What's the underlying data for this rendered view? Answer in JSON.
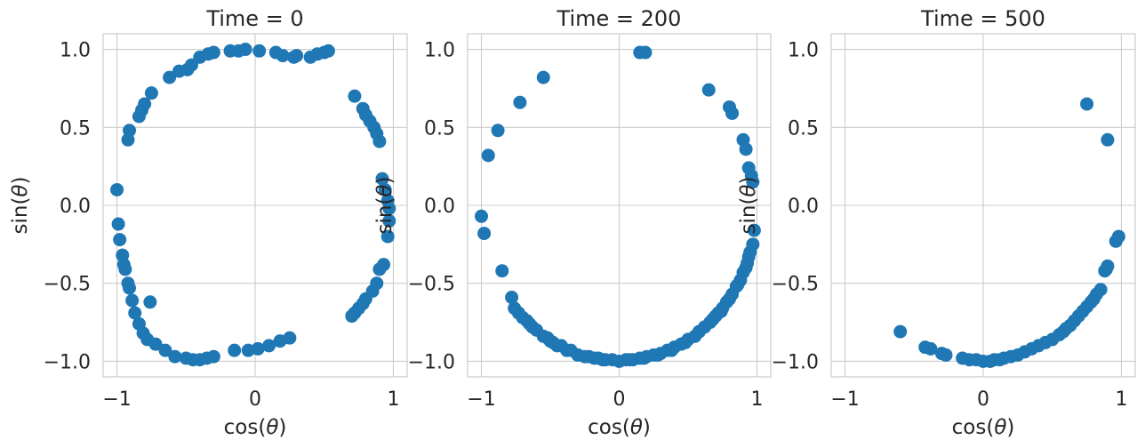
{
  "chart_data": [
    {
      "type": "scatter",
      "title": "Time = 0",
      "xlabel": "cos(θ)",
      "ylabel": "sin(θ)",
      "xlim": [
        -1.1,
        1.1
      ],
      "ylim": [
        -1.1,
        1.1
      ],
      "xticks": [
        -1,
        0,
        1
      ],
      "xtick_labels": [
        "−1",
        "0",
        "1"
      ],
      "yticks": [
        1.0,
        0.5,
        0.0,
        -0.5,
        -1.0
      ],
      "ytick_labels": [
        "1.0",
        "0.5",
        "0.0",
        "−0.5",
        "−1.0"
      ],
      "grid": true,
      "color": "#1f77b4",
      "x": [
        -1.0,
        -0.99,
        -0.98,
        -0.96,
        -0.95,
        -0.94,
        -0.92,
        -0.91,
        -0.89,
        -0.87,
        -0.84,
        -0.81,
        -0.78,
        -0.72,
        -0.65,
        -0.58,
        -0.5,
        -0.45,
        -0.4,
        -0.35,
        -0.3,
        -0.15,
        -0.05,
        0.02,
        0.1,
        0.18,
        0.25,
        0.3,
        0.4,
        0.45,
        0.5,
        0.53,
        -0.75,
        -0.62,
        -0.55,
        -0.49,
        -0.46,
        -0.4,
        -0.34,
        -0.3,
        -0.18,
        -0.12,
        -0.07,
        0.03,
        0.15,
        0.2,
        0.28,
        0.72,
        0.78,
        0.8,
        0.83,
        0.86,
        0.88,
        0.9,
        0.92,
        0.94,
        0.96,
        0.97,
        0.97,
        0.96,
        0.93,
        0.9,
        0.88,
        0.85,
        0.8,
        0.78,
        0.75,
        0.72,
        0.7,
        -0.92,
        -0.91,
        -0.84,
        -0.82,
        -0.8,
        -0.76
      ],
      "y": [
        0.1,
        -0.12,
        -0.22,
        -0.32,
        -0.38,
        -0.41,
        -0.5,
        -0.53,
        -0.61,
        -0.69,
        -0.76,
        -0.82,
        -0.86,
        -0.89,
        -0.93,
        -0.97,
        -0.98,
        -0.99,
        -0.99,
        -0.98,
        -0.97,
        -0.93,
        -0.93,
        -0.92,
        -0.9,
        -0.87,
        -0.85,
        0.96,
        0.95,
        0.97,
        0.98,
        0.99,
        0.72,
        0.82,
        0.86,
        0.87,
        0.9,
        0.95,
        0.97,
        0.98,
        0.99,
        0.99,
        1.0,
        0.99,
        0.98,
        0.96,
        0.95,
        0.7,
        0.62,
        0.58,
        0.54,
        0.5,
        0.46,
        0.41,
        0.17,
        0.1,
        0.03,
        -0.02,
        -0.1,
        -0.2,
        -0.38,
        -0.41,
        -0.5,
        -0.55,
        -0.6,
        -0.63,
        -0.66,
        -0.69,
        -0.71,
        0.42,
        0.48,
        0.57,
        0.61,
        0.65,
        -0.62
      ],
      "point_names": [
        "pt"
      ]
    },
    {
      "type": "scatter",
      "title": "Time = 200",
      "xlabel": "cos(θ)",
      "ylabel": "sin(θ)",
      "xlim": [
        -1.1,
        1.1
      ],
      "ylim": [
        -1.1,
        1.1
      ],
      "xticks": [
        -1,
        0,
        1
      ],
      "xtick_labels": [
        "−1",
        "0",
        "1"
      ],
      "yticks": [
        1.0,
        0.5,
        0.0,
        -0.5,
        -1.0
      ],
      "ytick_labels": [
        "1.0",
        "0.5",
        "0.0",
        "−0.5",
        "−1.0"
      ],
      "grid": true,
      "color": "#1f77b4",
      "x": [
        -1.0,
        -0.98,
        -0.95,
        -0.88,
        -0.85,
        -0.78,
        -0.72,
        -0.55,
        0.15,
        0.19,
        0.65,
        0.8,
        0.82,
        0.9,
        0.92,
        0.94,
        0.96,
        0.97,
        0.98,
        0.97,
        0.95,
        0.94,
        0.93,
        0.92,
        0.9,
        0.88,
        0.85,
        0.82,
        0.78,
        0.75,
        0.72,
        0.7,
        0.66,
        0.62,
        0.58,
        0.55,
        0.5,
        0.45,
        0.4,
        0.35,
        0.3,
        0.25,
        0.2,
        0.15,
        0.1,
        0.05,
        0.0,
        -0.05,
        -0.1,
        -0.15,
        -0.22,
        -0.3,
        -0.38,
        -0.45,
        -0.5,
        -0.55,
        -0.6,
        -0.63,
        -0.65,
        -0.67,
        -0.7,
        -0.73,
        -0.76,
        -0.52,
        -0.48,
        -0.42,
        -0.35,
        -0.25,
        -0.18,
        -0.12,
        0.08,
        0.18,
        0.28,
        0.38,
        0.48,
        0.58,
        0.68,
        0.74,
        0.8,
        0.86
      ],
      "y": [
        -0.07,
        -0.18,
        0.32,
        0.48,
        -0.42,
        -0.59,
        0.66,
        0.82,
        0.98,
        0.98,
        0.74,
        0.63,
        0.59,
        0.42,
        0.36,
        0.24,
        0.19,
        0.15,
        -0.16,
        -0.25,
        -0.3,
        -0.33,
        -0.37,
        -0.4,
        -0.43,
        -0.48,
        -0.52,
        -0.57,
        -0.62,
        -0.66,
        -0.69,
        -0.71,
        -0.75,
        -0.78,
        -0.81,
        -0.84,
        -0.86,
        -0.89,
        -0.91,
        -0.93,
        -0.95,
        -0.96,
        -0.97,
        -0.98,
        -0.99,
        -0.99,
        -1.0,
        -0.99,
        -0.99,
        -0.98,
        -0.97,
        -0.96,
        -0.93,
        -0.9,
        -0.87,
        -0.84,
        -0.8,
        -0.78,
        -0.76,
        -0.74,
        -0.72,
        -0.69,
        -0.66,
        -0.85,
        -0.88,
        -0.9,
        -0.93,
        -0.97,
        -0.98,
        -0.99,
        -0.99,
        -0.98,
        -0.96,
        -0.93,
        -0.88,
        -0.81,
        -0.73,
        -0.68,
        -0.6,
        -0.51
      ],
      "point_names": [
        "pt"
      ]
    },
    {
      "type": "scatter",
      "title": "Time = 500",
      "xlabel": "cos(θ)",
      "ylabel": "sin(θ)",
      "xlim": [
        -1.1,
        1.1
      ],
      "ylim": [
        -1.1,
        1.1
      ],
      "xticks": [
        -1,
        0,
        1
      ],
      "xtick_labels": [
        "−1",
        "0",
        "1"
      ],
      "yticks": [
        1.0,
        0.5,
        0.0,
        -0.5,
        -1.0
      ],
      "ytick_labels": [
        "1.0",
        "0.5",
        "0.0",
        "−0.5",
        "−1.0"
      ],
      "grid": true,
      "color": "#1f77b4",
      "x": [
        -0.6,
        -0.42,
        -0.38,
        -0.3,
        -0.27,
        -0.15,
        -0.1,
        -0.05,
        0.0,
        0.05,
        0.08,
        0.12,
        0.15,
        0.2,
        0.25,
        0.3,
        0.35,
        0.4,
        0.45,
        0.5,
        0.55,
        0.58,
        0.6,
        0.63,
        0.66,
        0.69,
        0.72,
        0.75,
        0.78,
        0.8,
        0.82,
        0.85,
        0.88,
        0.89,
        0.9,
        0.96,
        0.98,
        0.75,
        0.9
      ],
      "y": [
        -0.81,
        -0.91,
        -0.92,
        -0.95,
        -0.96,
        -0.98,
        -0.99,
        -0.99,
        -1.0,
        -1.0,
        -0.99,
        -0.99,
        -0.98,
        -0.97,
        -0.96,
        -0.94,
        -0.92,
        -0.9,
        -0.88,
        -0.86,
        -0.83,
        -0.81,
        -0.79,
        -0.77,
        -0.74,
        -0.71,
        -0.68,
        -0.65,
        -0.62,
        -0.6,
        -0.57,
        -0.54,
        -0.42,
        -0.41,
        -0.39,
        -0.23,
        -0.2,
        0.65,
        0.42
      ],
      "point_names": [
        "pt"
      ]
    }
  ]
}
